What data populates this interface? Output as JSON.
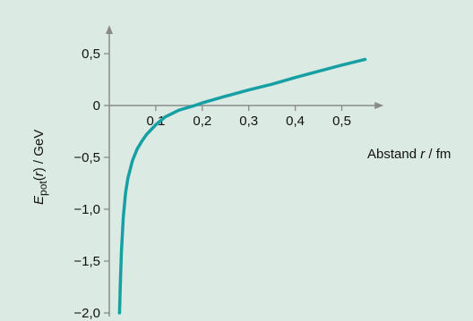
{
  "chart_data": {
    "type": "line",
    "xlabel_parts": {
      "pre": "Abstand ",
      "var": "r",
      "post": " / fm"
    },
    "ylabel_parts": {
      "E": "E",
      "sub": "pot",
      "mid1": "(",
      "var": "r",
      "mid2": ") / GeV"
    },
    "x_ticks": [
      {
        "value": 0.1,
        "label": "0,1"
      },
      {
        "value": 0.2,
        "label": "0,2"
      },
      {
        "value": 0.3,
        "label": "0,3"
      },
      {
        "value": 0.4,
        "label": "0,4"
      },
      {
        "value": 0.5,
        "label": "0,5"
      }
    ],
    "y_ticks": [
      {
        "value": 0.5,
        "label": "0,5"
      },
      {
        "value": 0,
        "label": "0"
      },
      {
        "value": -0.5,
        "label": "−0,5"
      },
      {
        "value": -1.0,
        "label": "−1,0"
      },
      {
        "value": -1.5,
        "label": "−1,5"
      },
      {
        "value": -2.0,
        "label": "−2,0"
      }
    ],
    "xlim": [
      0,
      0.59
    ],
    "ylim": [
      -2.0,
      0.72
    ],
    "grid": false,
    "series": [
      {
        "x": [
          0.022,
          0.024,
          0.026,
          0.03,
          0.035,
          0.04,
          0.05,
          0.06,
          0.07,
          0.08,
          0.1,
          0.12,
          0.15,
          0.18,
          0.2,
          0.25,
          0.3,
          0.35,
          0.4,
          0.45,
          0.5,
          0.55
        ],
        "y": [
          -2.0,
          -1.67,
          -1.42,
          -1.08,
          -0.84,
          -0.7,
          -0.53,
          -0.42,
          -0.345,
          -0.28,
          -0.185,
          -0.11,
          -0.045,
          -0.005,
          0.025,
          0.09,
          0.15,
          0.205,
          0.27,
          0.33,
          0.39,
          0.445
        ]
      }
    ],
    "colors": {
      "background": "#dceae4",
      "curve": "#17a0a3",
      "axis": "#8a8a8a"
    }
  }
}
